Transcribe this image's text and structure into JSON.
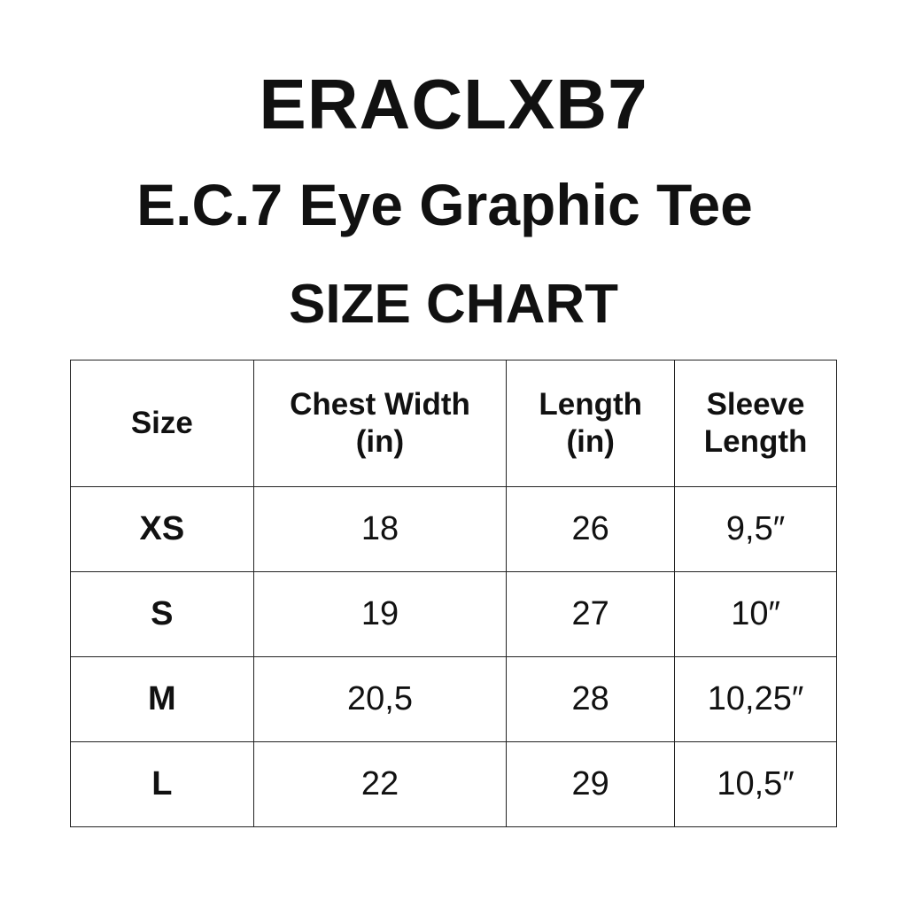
{
  "brand": "ERACLXB7",
  "product": "E.C.7 Eye Graphic Tee",
  "subtitle": "SIZE CHART",
  "table": {
    "headers": [
      [
        "Size"
      ],
      [
        "Chest Width",
        "(in)"
      ],
      [
        "Length",
        "(in)"
      ],
      [
        "Sleeve",
        "Length"
      ]
    ],
    "rows": [
      [
        "XS",
        "18",
        "26",
        "9,5″"
      ],
      [
        "S",
        "19",
        "27",
        "10″"
      ],
      [
        "M",
        "20,5",
        "28",
        "10,25″"
      ],
      [
        "L",
        "22",
        "29",
        "10,5″"
      ]
    ]
  }
}
